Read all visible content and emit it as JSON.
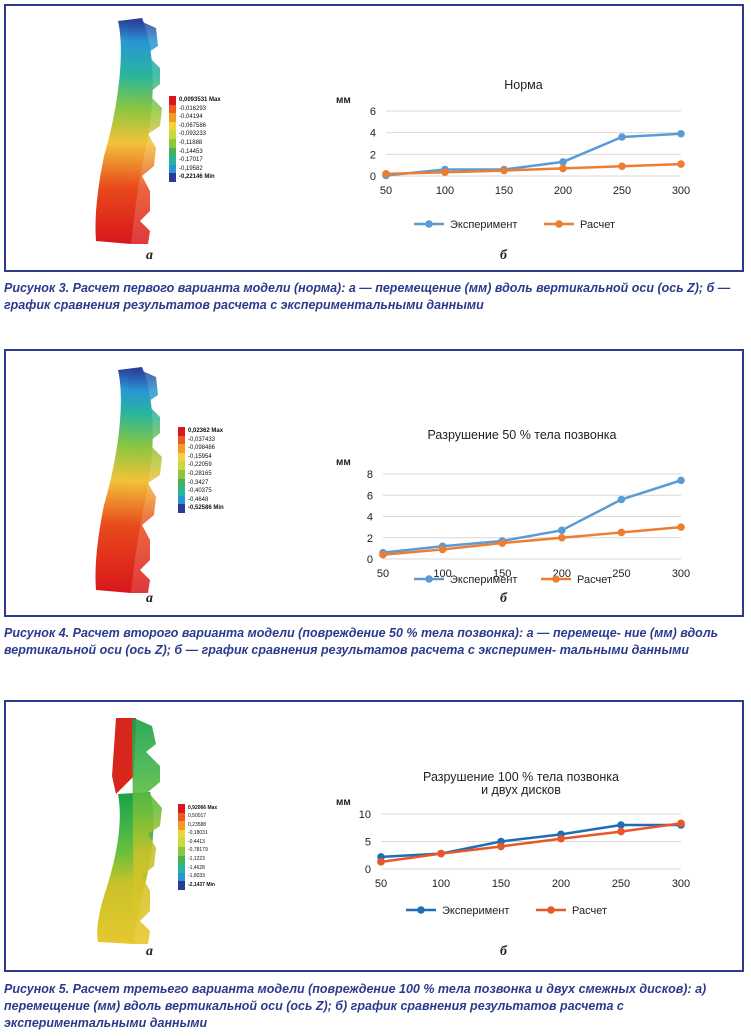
{
  "figures": [
    {
      "caption": "Рисунок 3. Расчет первого варианта модели (норма): а — перемещение (мм) вдоль вертикальной оси (ось Z); б — график сравнения результатов расчета с экспериментальными данными",
      "label_a": "а",
      "label_b": "б",
      "legend_values": [
        "0,0093531 Max",
        "-0,016293",
        "-0,04194",
        "-0,067586",
        "-0,093233",
        "-0,11888",
        "-0,14453",
        "-0,17017",
        "-0,19582",
        "-0,22146 Min"
      ],
      "legend_colors": [
        "#d9161b",
        "#ee5a1e",
        "#f59a22",
        "#f2d43a",
        "#c8da3e",
        "#8cc63f",
        "#43b35a",
        "#28b59b",
        "#2996d4",
        "#2b3a96"
      ]
    },
    {
      "caption": "Рисунок 4. Расчет второго варианта модели (повреждение 50 % тела позвонка): а — перемеще- ние (мм) вдоль вертикальной оси (ось Z); б — график сравнения результатов расчета с эксперимен- тальными данными",
      "label_a": "а",
      "label_b": "б",
      "legend_values": [
        "0,02362 Max",
        "-0,037433",
        "-0,098486",
        "-0,15954",
        "-0,22059",
        "-0,28165",
        "-0,3427",
        "-0,40375",
        "-0,4648",
        "-0,52586 Min"
      ],
      "legend_colors": [
        "#d9161b",
        "#ee5a1e",
        "#f59a22",
        "#f2d43a",
        "#c8da3e",
        "#8cc63f",
        "#43b35a",
        "#28b59b",
        "#2996d4",
        "#2b3a96"
      ]
    },
    {
      "caption": "Рисунок 5. Расчет третьего варианта модели (повреждение 100 % тела позвонка и двух смежных дисков): а) перемещение (мм) вдоль вертикальной оси (ось Z); б) график сравнения результатов расчета с экспериментальными данными",
      "label_a": "а",
      "label_b": "б",
      "legend_values": [
        "0,92066 Max",
        "0,50017",
        "0,23588",
        "-0,18031",
        "-0,4413",
        "-0,78179",
        "-1,1223",
        "-1,4628",
        "-1,8033",
        "-2,1437 Min"
      ],
      "legend_colors": [
        "#d9161b",
        "#ee5a1e",
        "#f59a22",
        "#f2d43a",
        "#c8da3e",
        "#8cc63f",
        "#43b35a",
        "#28b59b",
        "#2996d4",
        "#2b3a96"
      ]
    }
  ],
  "chart_data": [
    {
      "type": "line",
      "title": "Норма",
      "ylabel": "мм",
      "categories": [
        "50",
        "100",
        "150",
        "200",
        "250",
        "300"
      ],
      "yticks": [
        "0",
        "2",
        "4",
        "6"
      ],
      "ylim": [
        0,
        6
      ],
      "grid": true,
      "legend_position": "bottom",
      "series": [
        {
          "name": "Эксперимент",
          "color": "#5b9bd5",
          "values": [
            0.05,
            0.6,
            0.6,
            1.3,
            3.6,
            3.9
          ]
        },
        {
          "name": "Расчет",
          "color": "#ed7d31",
          "values": [
            0.2,
            0.35,
            0.5,
            0.7,
            0.9,
            1.1
          ]
        }
      ]
    },
    {
      "type": "line",
      "title": "Разрушение 50 % тела позвонка",
      "ylabel": "мм",
      "categories": [
        "50",
        "100",
        "150",
        "200",
        "250",
        "300"
      ],
      "yticks": [
        "0",
        "2",
        "4",
        "6",
        "8"
      ],
      "ylim": [
        0,
        8
      ],
      "grid": true,
      "legend_position": "bottom",
      "series": [
        {
          "name": "Эксперимент",
          "color": "#5b9bd5",
          "values": [
            0.6,
            1.2,
            1.7,
            2.7,
            5.6,
            7.4
          ]
        },
        {
          "name": "Расчет",
          "color": "#ed7d31",
          "values": [
            0.4,
            0.9,
            1.5,
            2.0,
            2.5,
            3.0
          ]
        }
      ]
    },
    {
      "type": "line",
      "title": "Разрушение 100 % тела позвонка",
      "title_line2": "и двух дисков",
      "ylabel": "мм",
      "categories": [
        "50",
        "100",
        "150",
        "200",
        "250",
        "300"
      ],
      "yticks": [
        "0",
        "5",
        "10"
      ],
      "ylim": [
        0,
        10
      ],
      "grid": true,
      "legend_position": "bottom",
      "series": [
        {
          "name": "Эксперимент",
          "color": "#1f6eb4",
          "values": [
            2.2,
            2.8,
            5.0,
            6.3,
            8.0,
            8.0
          ]
        },
        {
          "name": "Расчет",
          "color": "#e8562a",
          "values": [
            1.3,
            2.8,
            4.1,
            5.5,
            6.8,
            8.3
          ]
        }
      ]
    }
  ]
}
